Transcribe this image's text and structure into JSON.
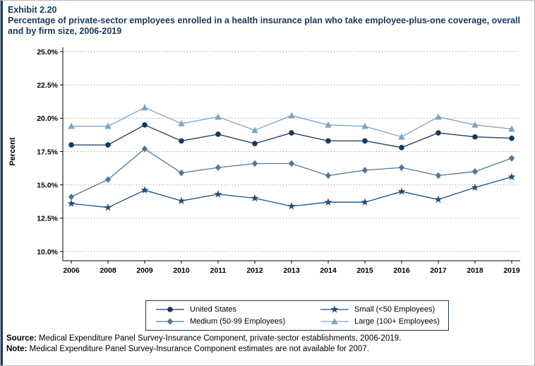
{
  "page": {
    "exhibit_label": "Exhibit 2.20",
    "title": "Percentage of private-sector employees enrolled in a health insurance plan who take employee-plus-one coverage, overall and by firm size, 2006-2019",
    "source_label": "Source:",
    "source_text": " Medical Expenditure Panel Survey-Insurance Component, private-sector establishments, 2006-2019.",
    "note_label": "Note:",
    "note_text": " Medical Expenditure Panel Survey-Insurance Component estimates are not available for 2007."
  },
  "chart_data": {
    "type": "line",
    "title": "Percentage of private-sector employees enrolled in a health insurance plan who take employee-plus-one coverage, overall and by firm size, 2006-2019",
    "xlabel": "",
    "ylabel": "Percent",
    "ylim": [
      10.0,
      25.0
    ],
    "ytick_step": 2.5,
    "ytick_labels": [
      "10.0%",
      "12.5%",
      "15.0%",
      "17.5%",
      "20.0%",
      "22.5%",
      "25.0%"
    ],
    "grid": "horizontal-dotted",
    "legend_position": "bottom",
    "categories": [
      "2006",
      "2008",
      "2009",
      "2010",
      "2011",
      "2012",
      "2013",
      "2014",
      "2015",
      "2016",
      "2017",
      "2018",
      "2019"
    ],
    "series": [
      {
        "name": "United States",
        "marker": "circle",
        "color": "#17375e",
        "values": [
          18.0,
          18.0,
          19.5,
          18.3,
          18.8,
          18.1,
          18.9,
          18.3,
          18.3,
          17.8,
          18.9,
          18.6,
          18.5
        ]
      },
      {
        "name": "Small (<50 Employees)",
        "marker": "star",
        "color": "#1f4e79",
        "values": [
          13.6,
          13.3,
          14.6,
          13.8,
          14.3,
          14.0,
          13.4,
          13.7,
          13.7,
          14.5,
          13.9,
          14.8,
          15.6
        ]
      },
      {
        "name": "Medium (50-99 Employees)",
        "marker": "diamond",
        "color": "#4f7899",
        "values": [
          14.1,
          15.4,
          17.7,
          15.9,
          16.3,
          16.6,
          16.6,
          15.7,
          16.1,
          16.3,
          15.7,
          16.0,
          17.0
        ]
      },
      {
        "name": "Large (100+ Employees)",
        "marker": "triangle",
        "color": "#7aa3c6",
        "values": [
          19.4,
          19.4,
          20.8,
          19.6,
          20.1,
          19.1,
          20.2,
          19.5,
          19.4,
          18.6,
          20.1,
          19.5,
          19.2
        ]
      }
    ]
  }
}
